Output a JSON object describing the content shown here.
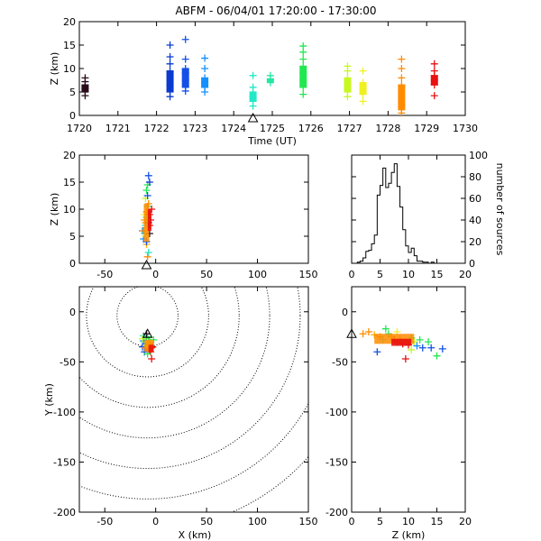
{
  "title": "ABFM - 06/04/01 17:20:00 - 17:30:00",
  "station_marker": "triangle",
  "chart_data": [
    {
      "type": "scatter",
      "panel": "time-height",
      "xlabel": "Time (UT)",
      "ylabel": "Z (km)",
      "xlim": [
        1720,
        1730
      ],
      "ylim": [
        0,
        20
      ],
      "xticks": [
        "1720",
        "1721",
        "1722",
        "1723",
        "1724",
        "1725",
        "1726",
        "1727",
        "1728",
        "1729",
        "1730"
      ],
      "yticks": [
        "0",
        "5",
        "10",
        "15",
        "20"
      ],
      "color_scale": [
        "#1a0a20",
        "#0a3ad0",
        "#1490ff",
        "#22e8c8",
        "#22e850",
        "#c8f820",
        "#ffb000",
        "#ff7000",
        "#e81010"
      ],
      "clusters": [
        {
          "t": 1720.15,
          "z": [
            5.0,
            5.8,
            6.5,
            7.2,
            4.2,
            8.0
          ],
          "color": "#2a0a1a"
        },
        {
          "t": 1722.35,
          "z": [
            5.0,
            6.5,
            8.0,
            9.5,
            11.0,
            12.5,
            15.0,
            4.0
          ],
          "color": "#0a3ad0"
        },
        {
          "t": 1722.75,
          "z": [
            6.0,
            7.5,
            9.0,
            10.0,
            12.0,
            16.2,
            5.2
          ],
          "color": "#1450e8"
        },
        {
          "t": 1723.25,
          "z": [
            5.0,
            6.0,
            7.0,
            8.0,
            10.0,
            12.2
          ],
          "color": "#1490ff"
        },
        {
          "t": 1724.5,
          "z": [
            3.0,
            4.0,
            5.0,
            6.0,
            8.5,
            2.0
          ],
          "color": "#22e8c8"
        },
        {
          "t": 1724.95,
          "z": [
            7.0,
            7.8,
            8.5
          ],
          "color": "#22e8a0"
        },
        {
          "t": 1725.8,
          "z": [
            6.0,
            7.5,
            9.0,
            10.5,
            12.0,
            13.5,
            14.8,
            4.5
          ],
          "color": "#22e850"
        },
        {
          "t": 1726.95,
          "z": [
            5.0,
            6.5,
            8.0,
            9.5,
            10.5,
            4.0
          ],
          "color": "#c8f820"
        },
        {
          "t": 1727.35,
          "z": [
            3.0,
            4.5,
            5.5,
            7.0,
            9.5
          ],
          "color": "#f0f020"
        },
        {
          "t": 1728.35,
          "z": [
            0.5,
            2.0,
            3.5,
            5.0,
            6.5,
            8.0,
            10.0,
            12.0,
            1.2
          ],
          "color": "#ff8c00"
        },
        {
          "t": 1729.2,
          "z": [
            4.2,
            6.5,
            7.5,
            8.5,
            9.5,
            11.0
          ],
          "color": "#e81010"
        }
      ],
      "station": {
        "t": 1724.5,
        "z": -0.3
      }
    },
    {
      "type": "scatter",
      "panel": "x-z",
      "xlabel": "",
      "ylabel": "Z (km)",
      "xlim": [
        -75,
        150
      ],
      "ylim": [
        0,
        20
      ],
      "xticks": [
        "-50",
        "0",
        "50",
        "100",
        "150"
      ],
      "yticks": [
        "0",
        "5",
        "10",
        "15",
        "20"
      ],
      "points": [
        {
          "x": -12,
          "z": 4.5,
          "color": "#1490ff"
        },
        {
          "x": -13,
          "z": 6.0,
          "color": "#1490ff"
        },
        {
          "x": -11,
          "z": 5.5,
          "color": "#22e8c8"
        },
        {
          "x": -10,
          "z": 7.0,
          "color": "#22e8c8"
        },
        {
          "x": -9,
          "z": 8.5,
          "color": "#22e850"
        },
        {
          "x": -8,
          "z": 10.5,
          "color": "#22e850"
        },
        {
          "x": -9,
          "z": 13.5,
          "color": "#22e850"
        },
        {
          "x": -8,
          "z": 14.5,
          "color": "#22e850"
        },
        {
          "x": -10,
          "z": 12.0,
          "color": "#c8f820"
        },
        {
          "x": -11,
          "z": 9.0,
          "color": "#f0f020"
        },
        {
          "x": -10,
          "z": 5.0,
          "color": "#f0f020"
        },
        {
          "x": -9,
          "z": 3.5,
          "color": "#ffb000"
        },
        {
          "x": -8,
          "z": 6.5,
          "color": "#ffb000"
        },
        {
          "x": -10,
          "z": 7.5,
          "color": "#ff8c00"
        },
        {
          "x": -9,
          "z": 9.5,
          "color": "#ff8c00"
        },
        {
          "x": -11,
          "z": 8.0,
          "color": "#ff8c00"
        },
        {
          "x": -12,
          "z": 6.0,
          "color": "#ff8c00"
        },
        {
          "x": -7,
          "z": 11.0,
          "color": "#ff8c00"
        },
        {
          "x": -6,
          "z": 7.0,
          "color": "#e81010"
        },
        {
          "x": -5,
          "z": 8.0,
          "color": "#e81010"
        },
        {
          "x": -6,
          "z": 9.0,
          "color": "#e81010"
        },
        {
          "x": -4,
          "z": 10.0,
          "color": "#e81010"
        },
        {
          "x": -7,
          "z": 16.2,
          "color": "#1450e8"
        },
        {
          "x": -6,
          "z": 15.0,
          "color": "#0a3ad0"
        },
        {
          "x": -8,
          "z": 12.5,
          "color": "#1450e8"
        },
        {
          "x": -9,
          "z": 4.0,
          "color": "#1450e8"
        },
        {
          "x": -7,
          "z": 2.0,
          "color": "#22e8c8"
        },
        {
          "x": -8,
          "z": 1.2,
          "color": "#ff8c00"
        },
        {
          "x": -6,
          "z": 5.5,
          "color": "#2a0a1a"
        },
        {
          "x": -7,
          "z": 7.5,
          "color": "#2a0a1a"
        }
      ],
      "station": {
        "x": -9,
        "z": -0.3
      }
    },
    {
      "type": "line",
      "panel": "z-histogram",
      "xlabel": "",
      "ylabel": "number of sources",
      "xlim": [
        0,
        20
      ],
      "ylim": [
        0,
        100
      ],
      "xticks": [
        "0",
        "5",
        "10",
        "15",
        "20"
      ],
      "yticks": [
        "0",
        "20",
        "40",
        "60",
        "80",
        "100"
      ],
      "bin_width": 0.5,
      "bin_start": 0,
      "counts": [
        0,
        0,
        1,
        2,
        5,
        11,
        12,
        18,
        26,
        63,
        72,
        88,
        70,
        74,
        84,
        92,
        71,
        52,
        31,
        16,
        10,
        14,
        7,
        2,
        2,
        1,
        1,
        0,
        1,
        0,
        0,
        0,
        0,
        0,
        0,
        0,
        0,
        0,
        0,
        0
      ]
    },
    {
      "type": "scatter",
      "panel": "x-y-plan",
      "xlabel": "X (km)",
      "ylabel": "Y (km)",
      "xlim": [
        -75,
        150
      ],
      "ylim": [
        -200,
        25
      ],
      "xticks": [
        "-50",
        "0",
        "50",
        "100",
        "150"
      ],
      "yticks": [
        "-200",
        "-150",
        "-100",
        "-50",
        "0"
      ],
      "range_rings_km": [
        30,
        60,
        90,
        120,
        150,
        180,
        210
      ],
      "ring_center": {
        "x": -8,
        "y": -4
      },
      "points": [
        {
          "x": -9,
          "y": -27,
          "color": "#22e850"
        },
        {
          "x": -8,
          "y": -25,
          "color": "#22e850"
        },
        {
          "x": -7,
          "y": -28,
          "color": "#22e850"
        },
        {
          "x": -11,
          "y": -30,
          "color": "#22e8c8"
        },
        {
          "x": -10,
          "y": -32,
          "color": "#1490ff"
        },
        {
          "x": -12,
          "y": -29,
          "color": "#1490ff"
        },
        {
          "x": -13,
          "y": -35,
          "color": "#1450e8"
        },
        {
          "x": -9,
          "y": -34,
          "color": "#c8f820"
        },
        {
          "x": -8,
          "y": -30,
          "color": "#f0f020"
        },
        {
          "x": -6,
          "y": -32,
          "color": "#ffb000"
        },
        {
          "x": -10,
          "y": -36,
          "color": "#ff8c00"
        },
        {
          "x": -7,
          "y": -37,
          "color": "#ff8c00"
        },
        {
          "x": -5,
          "y": -33,
          "color": "#ff8c00"
        },
        {
          "x": -4,
          "y": -36,
          "color": "#e81010"
        },
        {
          "x": -6,
          "y": -38,
          "color": "#e81010"
        },
        {
          "x": -3,
          "y": -35,
          "color": "#e81010"
        },
        {
          "x": -5,
          "y": -40,
          "color": "#e81010"
        },
        {
          "x": -4,
          "y": -47,
          "color": "#e81010"
        },
        {
          "x": -12,
          "y": -24,
          "color": "#22e8c8"
        },
        {
          "x": -9,
          "y": -22,
          "color": "#2a0a1a"
        },
        {
          "x": -11,
          "y": -40,
          "color": "#1450e8"
        },
        {
          "x": -8,
          "y": -42,
          "color": "#22e850"
        },
        {
          "x": -2,
          "y": -28,
          "color": "#22e850"
        },
        {
          "x": -13,
          "y": -27,
          "color": "#c8f820"
        }
      ],
      "station": {
        "x": -8,
        "y": -22
      }
    },
    {
      "type": "scatter",
      "panel": "z-y",
      "xlabel": "Z (km)",
      "ylabel": "",
      "xlim": [
        0,
        20
      ],
      "ylim": [
        -200,
        25
      ],
      "xticks": [
        "0",
        "5",
        "10",
        "15",
        "20"
      ],
      "yticks": [
        "-200",
        "-150",
        "-100",
        "-50",
        "0"
      ],
      "points": [
        {
          "z": 2.0,
          "y": -22,
          "color": "#ff8c00"
        },
        {
          "z": 3.0,
          "y": -20,
          "color": "#ff8c00"
        },
        {
          "z": 4.0,
          "y": -23,
          "color": "#ffb000"
        },
        {
          "z": 5.0,
          "y": -25,
          "color": "#ff8c00"
        },
        {
          "z": 5.5,
          "y": -28,
          "color": "#22e8c8"
        },
        {
          "z": 6.5,
          "y": -22,
          "color": "#22e850"
        },
        {
          "z": 7.0,
          "y": -25,
          "color": "#ff8c00"
        },
        {
          "z": 7.5,
          "y": -28,
          "color": "#e81010"
        },
        {
          "z": 8.0,
          "y": -30,
          "color": "#e81010"
        },
        {
          "z": 8.5,
          "y": -27,
          "color": "#ff8c00"
        },
        {
          "z": 9.0,
          "y": -32,
          "color": "#e81010"
        },
        {
          "z": 9.5,
          "y": -29,
          "color": "#ff8c00"
        },
        {
          "z": 10.0,
          "y": -33,
          "color": "#e81010"
        },
        {
          "z": 10.5,
          "y": -26,
          "color": "#22e850"
        },
        {
          "z": 11.0,
          "y": -30,
          "color": "#c8f820"
        },
        {
          "z": 11.5,
          "y": -34,
          "color": "#1490ff"
        },
        {
          "z": 12.0,
          "y": -28,
          "color": "#22e850"
        },
        {
          "z": 12.5,
          "y": -36,
          "color": "#1450e8"
        },
        {
          "z": 13.5,
          "y": -30,
          "color": "#22e850"
        },
        {
          "z": 14.0,
          "y": -36,
          "color": "#1450e8"
        },
        {
          "z": 15.0,
          "y": -44,
          "color": "#22e850"
        },
        {
          "z": 16.0,
          "y": -37,
          "color": "#1450e8"
        },
        {
          "z": 4.5,
          "y": -40,
          "color": "#1450e8"
        },
        {
          "z": 9.5,
          "y": -47,
          "color": "#e81010"
        },
        {
          "z": 6.0,
          "y": -17,
          "color": "#22e850"
        },
        {
          "z": 8.0,
          "y": -20,
          "color": "#f0f020"
        },
        {
          "z": 10.5,
          "y": -38,
          "color": "#c8f820"
        }
      ],
      "station": {
        "z": 0,
        "y": -22
      }
    }
  ]
}
